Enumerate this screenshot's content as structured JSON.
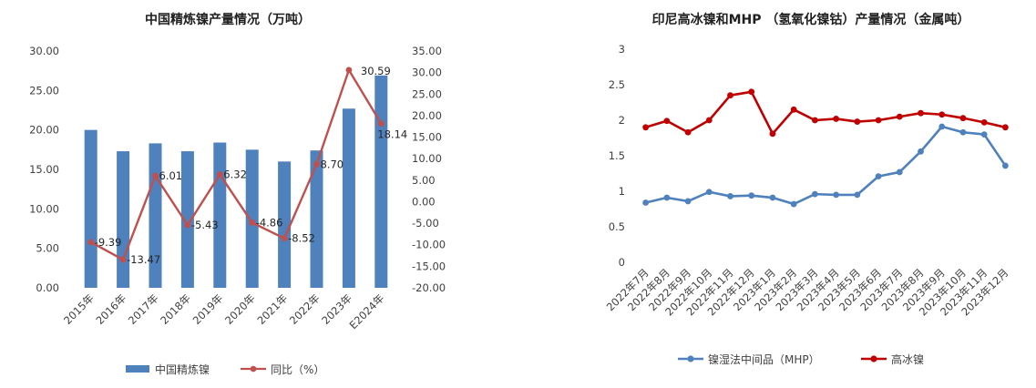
{
  "chart_data": [
    {
      "type": "bar",
      "title": "中国精炼镍产量情况（万吨）",
      "categories": [
        "2015年",
        "2016年",
        "2017年",
        "2018年",
        "2019年",
        "2020年",
        "2021年",
        "2022年",
        "2023年",
        "E2024年"
      ],
      "series": [
        {
          "name": "中国精炼镍",
          "type": "bar",
          "axis": "left",
          "color": "#4f81bd",
          "values": [
            20.0,
            17.3,
            18.3,
            17.3,
            18.4,
            17.5,
            16.0,
            17.4,
            22.7,
            26.9
          ]
        },
        {
          "name": "同比（%）",
          "type": "line",
          "axis": "right",
          "color": "#c0504d",
          "values": [
            -9.39,
            -13.47,
            6.01,
            -5.43,
            6.32,
            -4.86,
            -8.52,
            8.7,
            30.59,
            18.14
          ],
          "labels": [
            "-9.39",
            "-13.47",
            "6.01",
            "-5.43",
            "6.32",
            "-4.86",
            "-8.52",
            "8.70",
            "30.59",
            "18.14"
          ]
        }
      ],
      "y_left": {
        "min": 0,
        "max": 30,
        "step": 5,
        "ticks": [
          "0.00",
          "5.00",
          "10.00",
          "15.00",
          "20.00",
          "25.00",
          "30.00"
        ]
      },
      "y_right": {
        "min": -20,
        "max": 35,
        "step": 5,
        "ticks": [
          "-20.00",
          "-15.00",
          "-10.00",
          "-5.00",
          "0.00",
          "5.00",
          "10.00",
          "15.00",
          "20.00",
          "25.00",
          "30.00",
          "35.00"
        ]
      },
      "grid": false,
      "legend_position": "bottom"
    },
    {
      "type": "line",
      "title": "印尼高冰镍和MHP （氢氧化镍钴）产量情况（金属吨）",
      "categories": [
        "2022年7月",
        "2022年8月",
        "2022年9月",
        "2022年10月",
        "2022年11月",
        "2022年12月",
        "2023年1月",
        "2023年2月",
        "2023年3月",
        "2023年4月",
        "2023年5月",
        "2023年6月",
        "2023年7月",
        "2023年8月",
        "2023年9月",
        "2023年10月",
        "2023年11月",
        "2023年12月"
      ],
      "series": [
        {
          "name": "镍湿法中间品（MHP）",
          "color": "#4f81bd",
          "values": [
            0.84,
            0.91,
            0.86,
            0.99,
            0.93,
            0.94,
            0.91,
            0.82,
            0.96,
            0.95,
            0.95,
            1.21,
            1.27,
            1.56,
            1.91,
            1.83,
            1.8,
            1.36
          ]
        },
        {
          "name": "高冰镍",
          "color": "#c00000",
          "values": [
            1.9,
            1.99,
            1.83,
            2.0,
            2.35,
            2.4,
            1.81,
            2.15,
            2.0,
            2.02,
            1.98,
            2.0,
            2.05,
            2.1,
            2.08,
            2.03,
            1.97,
            1.9
          ]
        }
      ],
      "y": {
        "min": 0,
        "max": 3,
        "step": 0.5,
        "ticks": [
          "0",
          "0.5",
          "1",
          "1.5",
          "2",
          "2.5",
          "3"
        ]
      },
      "grid": false,
      "legend_position": "bottom"
    }
  ]
}
